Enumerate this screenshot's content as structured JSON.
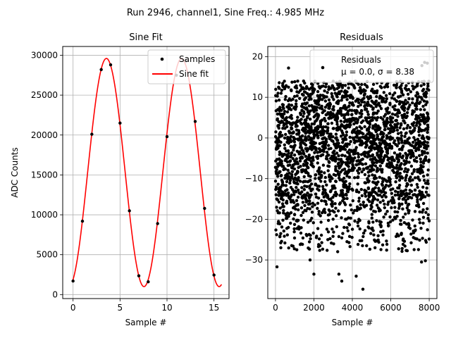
{
  "figure": {
    "suptitle": "Run 2946, channel1, Sine Freq.: 4.985 MHz"
  },
  "chart_data": [
    {
      "type": "scatter+line",
      "title": "Sine Fit",
      "xlabel": "Sample #",
      "ylabel": "ADC Counts",
      "xlim": [
        -1.1,
        16.6
      ],
      "ylim": [
        -500,
        31100
      ],
      "xticks": [
        0,
        5,
        10,
        15
      ],
      "yticks": [
        0,
        5000,
        10000,
        15000,
        20000,
        25000,
        30000
      ],
      "grid": true,
      "legend_position": "top-right",
      "series": [
        {
          "name": "Samples",
          "kind": "scatter",
          "color": "#000000",
          "x": [
            0,
            1,
            2,
            3,
            4,
            5,
            6,
            7,
            8,
            9,
            10,
            11,
            12,
            13,
            14,
            15
          ],
          "y": [
            1700,
            9200,
            20100,
            28200,
            28800,
            21500,
            10500,
            2350,
            1600,
            8900,
            19800,
            27500,
            29300,
            21700,
            10800,
            2450
          ]
        },
        {
          "name": "Sine fit",
          "kind": "line",
          "color": "#ff0000",
          "model": {
            "offset": 15300,
            "amplitude": 14300,
            "period_samples": 8.0,
            "phase_peak_x": 3.55
          },
          "x_range": [
            0,
            15.8
          ]
        }
      ]
    },
    {
      "type": "scatter",
      "title": "Residuals",
      "xlabel": "Sample #",
      "xlim": [
        -400,
        8400
      ],
      "ylim": [
        -39.5,
        22.5
      ],
      "xticks": [
        0,
        2000,
        4000,
        6000,
        8000
      ],
      "yticks": [
        -30,
        -20,
        -10,
        0,
        10,
        20
      ],
      "ytick_labels": [
        "−30",
        "−20",
        "−10",
        "0",
        "10",
        "20"
      ],
      "grid": true,
      "legend_position": "top-right",
      "legend": {
        "line1": "Residuals",
        "line2": "μ = 0.0, σ = 8.38"
      },
      "series": [
        {
          "name": "Residuals",
          "color": "#000000",
          "n_points": 8000,
          "mean": 0.0,
          "std": 8.38,
          "distribution": "bounded above near +14, long tail below to about −37",
          "notable_points": [
            {
              "x": 60,
              "y": -23.8
            },
            {
              "x": 80,
              "y": -31.7
            },
            {
              "x": 280,
              "y": -27
            },
            {
              "x": 1800,
              "y": -30
            },
            {
              "x": 2000,
              "y": -33.5
            },
            {
              "x": 3300,
              "y": -33.5
            },
            {
              "x": 3450,
              "y": -35.2
            },
            {
              "x": 4200,
              "y": -34
            },
            {
              "x": 4550,
              "y": -37.2
            },
            {
              "x": 7600,
              "y": -30.5
            },
            {
              "x": 7800,
              "y": -30.2
            },
            {
              "x": 680,
              "y": 17.2
            },
            {
              "x": 7620,
              "y": 17.8
            },
            {
              "x": 7760,
              "y": 18.6
            },
            {
              "x": 7900,
              "y": 18.4
            }
          ]
        }
      ]
    }
  ]
}
